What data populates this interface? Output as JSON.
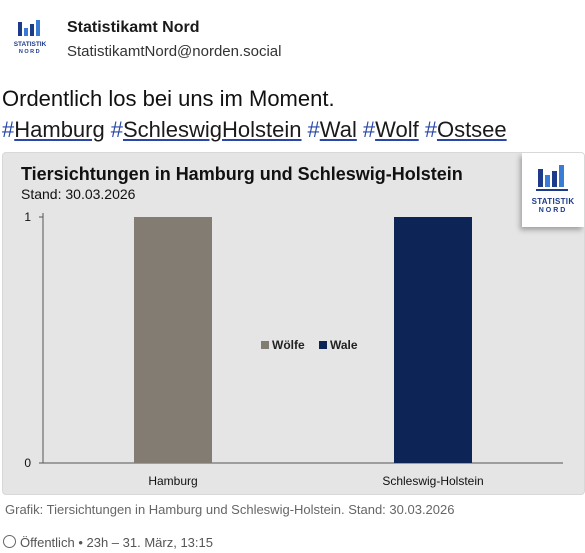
{
  "account": {
    "name": "Statistikamt Nord",
    "handle": "StatistikamtNord@norden.social",
    "avatar_text_line1": "STATISTIK",
    "avatar_text_line2": "NORD"
  },
  "post": {
    "text": "Ordentlich los bei uns im Moment.",
    "hashtags": [
      {
        "hash": "#",
        "tag": "Hamburg"
      },
      {
        "hash": "#",
        "tag": "SchleswigHolstein"
      },
      {
        "hash": "#",
        "tag": "Wal"
      },
      {
        "hash": "#",
        "tag": "Wolf"
      },
      {
        "hash": "#",
        "tag": "Ostsee"
      }
    ]
  },
  "image_caption": "Grafik: Tiersichtungen in Hamburg und Schleswig-Holstein. Stand: 30.03.2026",
  "footer": {
    "visibility": "Öffentlich",
    "separator": "•",
    "time": "23h – 31. März, 13:15"
  },
  "chart_data": {
    "type": "bar",
    "title": "Tiersichtungen in Hamburg und Schleswig-Holstein",
    "subtitle": "Stand: 30.03.2026",
    "categories": [
      "Hamburg",
      "Schleswig-Holstein"
    ],
    "series": [
      {
        "name": "Wölfe",
        "values": [
          1,
          0
        ],
        "color": "#827c73"
      },
      {
        "name": "Wale",
        "values": [
          0,
          1
        ],
        "color": "#0d2456"
      }
    ],
    "ylim": [
      0,
      1
    ],
    "yticks": [
      0,
      1
    ],
    "legend": "center",
    "grid": false,
    "logo_text_line1": "STATISTIK",
    "logo_text_line2": "NORD"
  }
}
